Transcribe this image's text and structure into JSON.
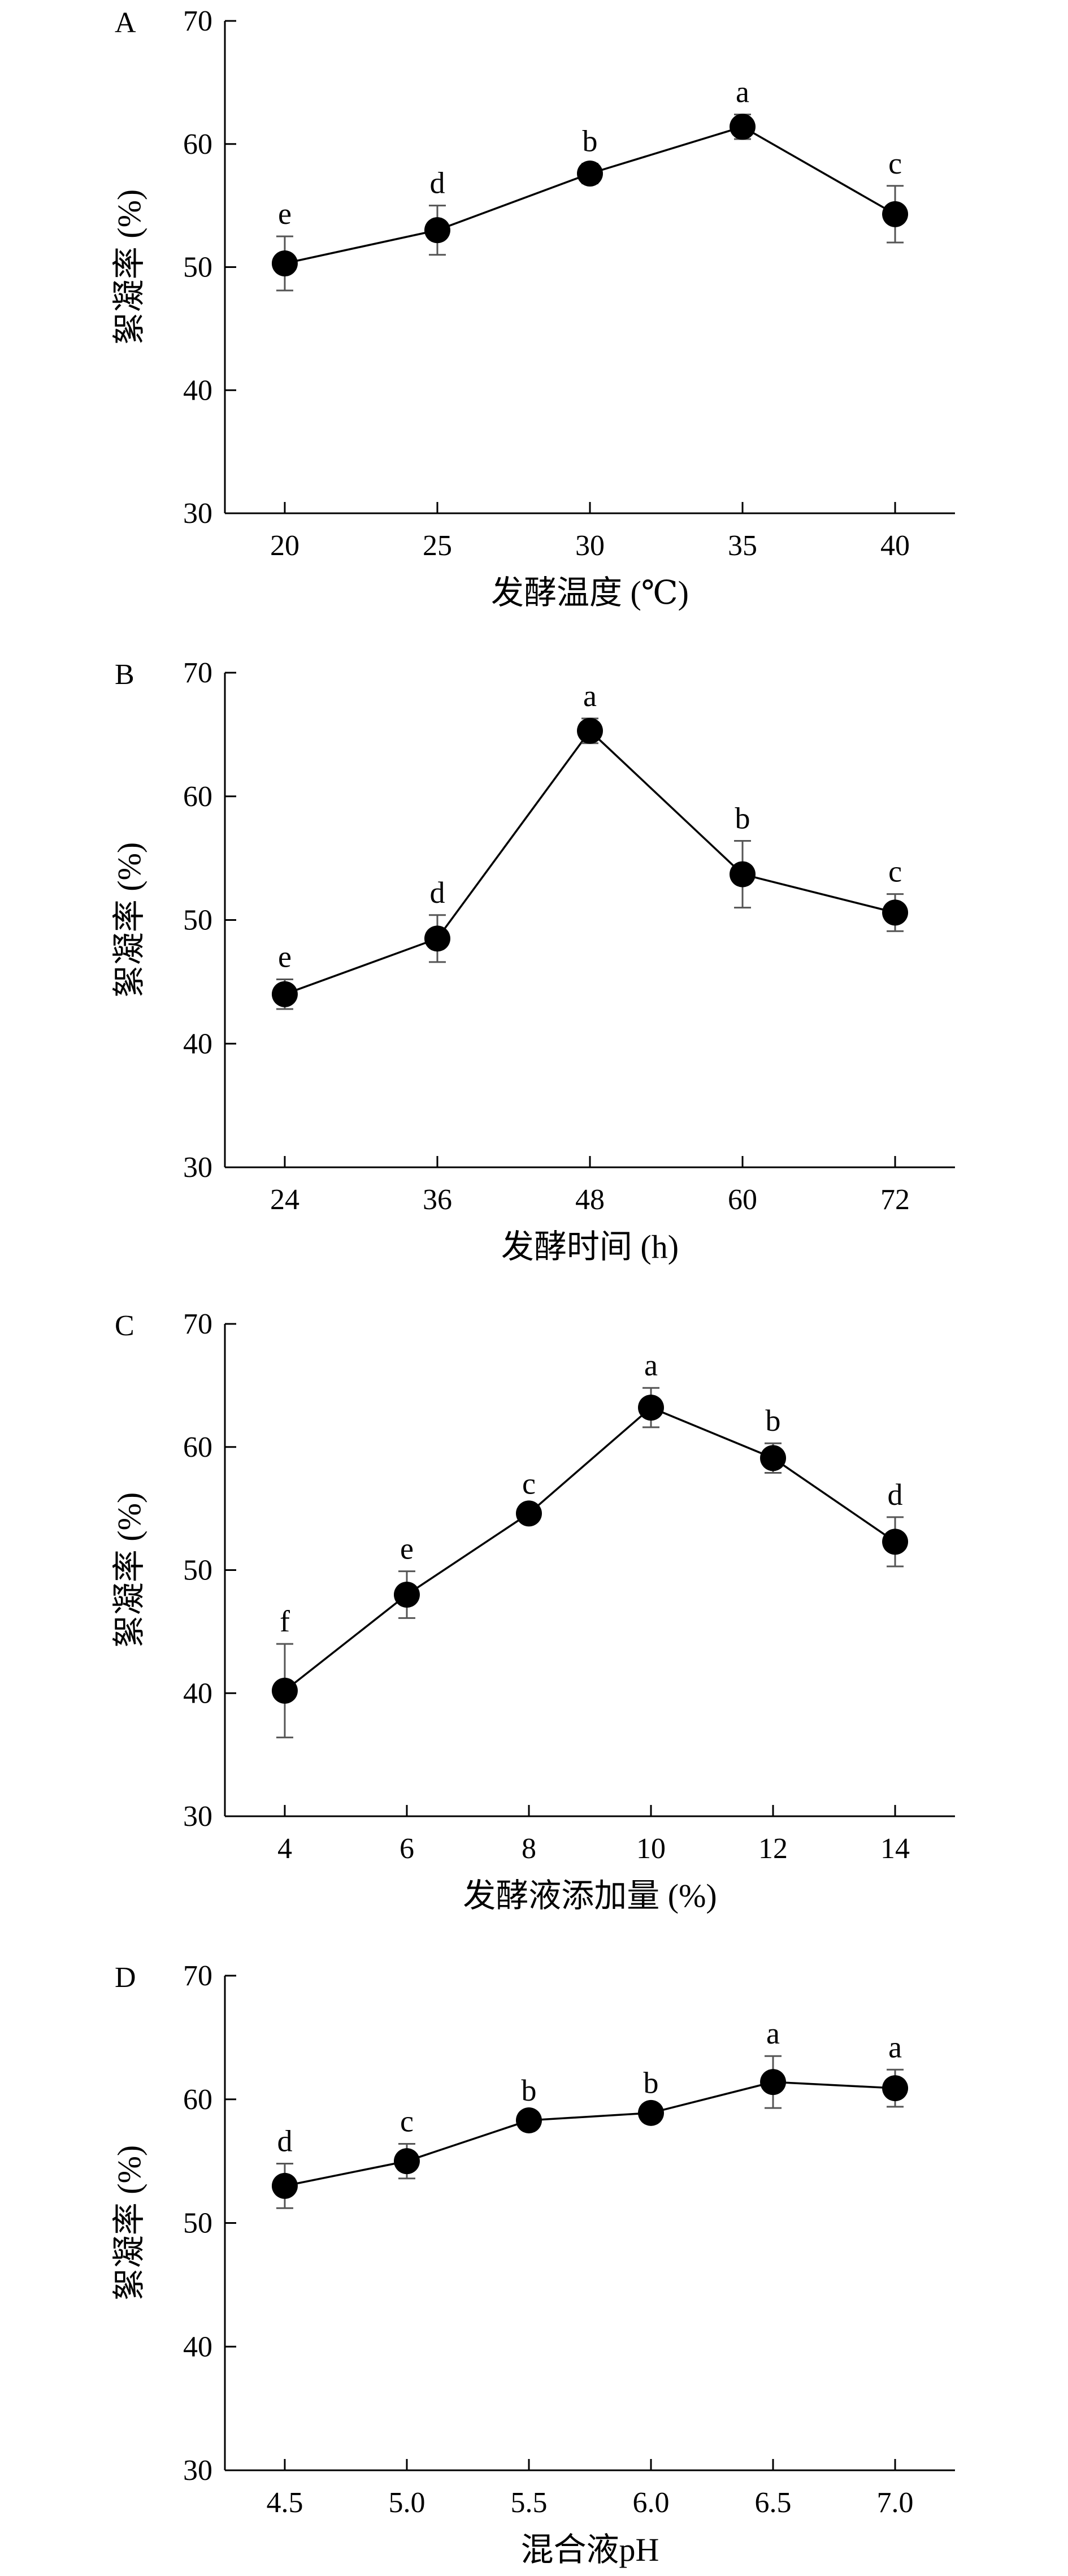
{
  "chart_data": [
    {
      "panel": "A",
      "type": "line",
      "xlabel": "发酵温度 (℃)",
      "ylabel": "絮凝率 (%)",
      "ylim": [
        30,
        70
      ],
      "yticks": [
        "30",
        "40",
        "50",
        "60",
        "70"
      ],
      "categories": [
        "20",
        "25",
        "30",
        "35",
        "40"
      ],
      "values": [
        50.3,
        53.0,
        57.6,
        61.4,
        54.3
      ],
      "errors": [
        2.2,
        2.0,
        0.8,
        1.0,
        2.3
      ],
      "letters": [
        "e",
        "d",
        "b",
        "a",
        "c"
      ]
    },
    {
      "panel": "B",
      "type": "line",
      "xlabel": "发酵时间 (h)",
      "ylabel": "絮凝率 (%)",
      "ylim": [
        30,
        70
      ],
      "yticks": [
        "30",
        "40",
        "50",
        "60",
        "70"
      ],
      "categories": [
        "24",
        "36",
        "48",
        "60",
        "72"
      ],
      "values": [
        44.0,
        48.5,
        65.3,
        53.7,
        50.6
      ],
      "errors": [
        1.2,
        1.9,
        1.0,
        2.7,
        1.5
      ],
      "letters": [
        "e",
        "d",
        "a",
        "b",
        "c"
      ]
    },
    {
      "panel": "C",
      "type": "line",
      "xlabel": "发酵液添加量 (%)",
      "ylabel": "絮凝率 (%)",
      "ylim": [
        30,
        70
      ],
      "yticks": [
        "30",
        "40",
        "50",
        "60",
        "70"
      ],
      "categories": [
        "4",
        "6",
        "8",
        "10",
        "12",
        "14"
      ],
      "values": [
        40.2,
        48.0,
        54.6,
        63.2,
        59.1,
        52.3
      ],
      "errors": [
        3.8,
        1.9,
        0.6,
        1.6,
        1.2,
        2.0
      ],
      "letters": [
        "f",
        "e",
        "c",
        "a",
        "b",
        "d"
      ]
    },
    {
      "panel": "D",
      "type": "line",
      "xlabel": "混合液pH",
      "ylabel": "絮凝率 (%)",
      "ylim": [
        30,
        70
      ],
      "yticks": [
        "30",
        "40",
        "50",
        "60",
        "70"
      ],
      "categories": [
        "4.5",
        "5.0",
        "5.5",
        "6.0",
        "6.5",
        "7.0"
      ],
      "values": [
        53.0,
        55.0,
        58.3,
        58.9,
        61.4,
        60.9
      ],
      "errors": [
        1.8,
        1.4,
        0.6,
        0.6,
        2.1,
        1.5
      ],
      "letters": [
        "d",
        "c",
        "b",
        "b",
        "a",
        "a"
      ]
    }
  ]
}
